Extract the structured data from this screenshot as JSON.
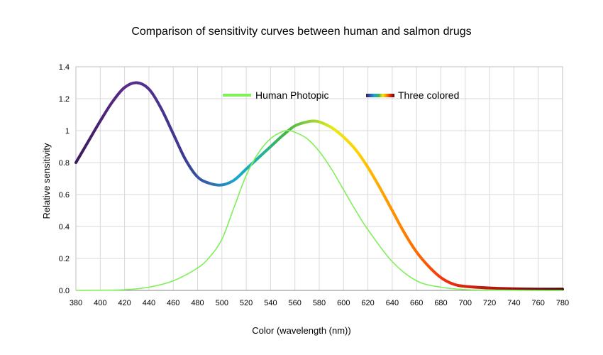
{
  "chart_data": {
    "type": "line",
    "title": "Comparison of sensitivity curves between human and salmon drugs",
    "xlabel": "Color (wavelength (nm))",
    "ylabel": "Relative sensitivity",
    "xlim": [
      380,
      780
    ],
    "ylim": [
      0,
      1.4
    ],
    "x_ticks": [
      380,
      400,
      420,
      440,
      460,
      480,
      500,
      520,
      540,
      560,
      580,
      600,
      620,
      640,
      660,
      680,
      700,
      720,
      740,
      760,
      780
    ],
    "y_ticks": [
      0,
      0.2,
      0.4,
      0.6,
      0.8,
      1,
      1.2,
      1.4
    ],
    "y_tick_labels": [
      "0.0",
      "0.2",
      "0.4",
      "0.6",
      "0.8",
      "1",
      "1.2",
      "1.4"
    ],
    "grid": true,
    "legend_position": "top",
    "series": [
      {
        "name": "Human Photopic",
        "color": "#7fef5a",
        "x": [
          380,
          400,
          420,
          440,
          460,
          480,
          490,
          500,
          510,
          520,
          530,
          540,
          550,
          555,
          560,
          570,
          580,
          590,
          600,
          610,
          620,
          640,
          660,
          680,
          700,
          720,
          740,
          760,
          780
        ],
        "y": [
          0.0,
          0.001,
          0.004,
          0.02,
          0.06,
          0.14,
          0.21,
          0.32,
          0.52,
          0.72,
          0.86,
          0.95,
          0.995,
          1.0,
          0.99,
          0.95,
          0.87,
          0.76,
          0.63,
          0.5,
          0.38,
          0.18,
          0.06,
          0.02,
          0.005,
          0.002,
          0.001,
          0.0,
          0.0
        ]
      },
      {
        "name": "Three colored",
        "color": "spectrum",
        "x": [
          380,
          390,
          400,
          410,
          420,
          430,
          440,
          450,
          460,
          470,
          480,
          490,
          500,
          510,
          520,
          530,
          540,
          550,
          560,
          570,
          575,
          580,
          590,
          600,
          610,
          620,
          630,
          640,
          650,
          660,
          670,
          680,
          690,
          700,
          720,
          740,
          760,
          780
        ],
        "y": [
          0.8,
          0.93,
          1.06,
          1.18,
          1.27,
          1.3,
          1.26,
          1.14,
          0.98,
          0.82,
          0.71,
          0.67,
          0.66,
          0.69,
          0.76,
          0.83,
          0.9,
          0.97,
          1.03,
          1.055,
          1.06,
          1.055,
          1.02,
          0.96,
          0.88,
          0.77,
          0.64,
          0.5,
          0.36,
          0.24,
          0.15,
          0.08,
          0.04,
          0.025,
          0.015,
          0.01,
          0.008,
          0.008
        ]
      }
    ]
  }
}
